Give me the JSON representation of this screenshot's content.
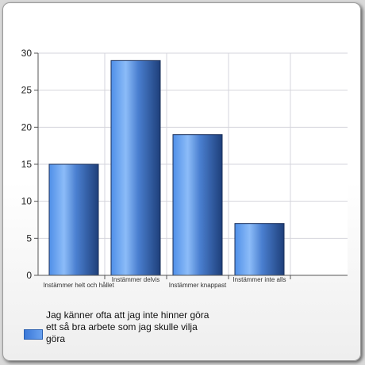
{
  "chart_data": {
    "type": "bar",
    "title": "",
    "xlabel": "",
    "ylabel": "",
    "categories": [
      "Instämmer helt och hållet",
      "Instämmer delvis",
      "Instämmer knappast",
      "Instämmer inte alls"
    ],
    "series": [
      {
        "name": "Jag känner ofta att jag inte hinner göra ett så bra arbete som jag skulle vilja göra",
        "values": [
          15,
          29,
          19,
          7
        ]
      }
    ],
    "ylim": [
      0,
      30
    ],
    "yticks": [
      0,
      5,
      10,
      15,
      20,
      25,
      30
    ],
    "grid": true,
    "legend_position": "bottom-left",
    "bar_color": "#4a86dc"
  }
}
